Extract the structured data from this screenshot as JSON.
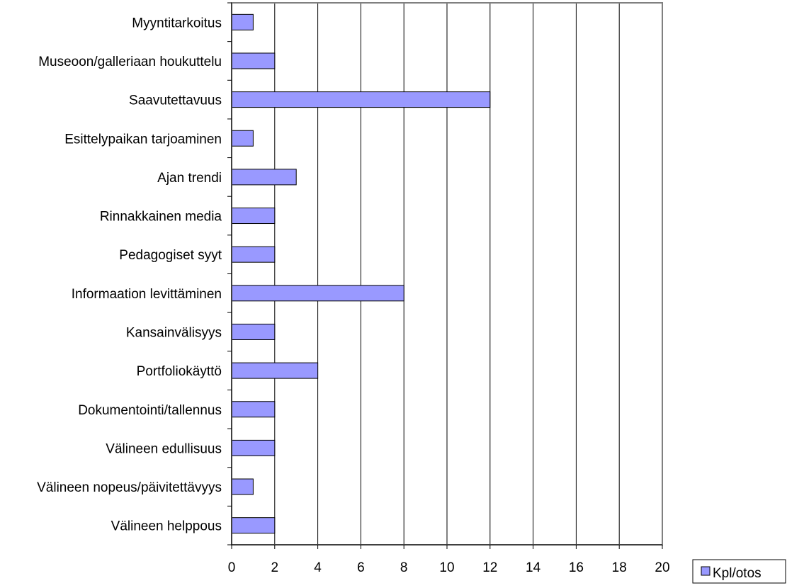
{
  "chart_data": {
    "type": "bar",
    "orientation": "horizontal",
    "title": "",
    "xlabel": "",
    "ylabel": "",
    "categories": [
      "Myyntitarkoitus",
      "Museoon/galleriaan houkuttelu",
      "Saavutettavuus",
      "Esittelypaikan tarjoaminen",
      "Ajan trendi",
      "Rinnakkainen media",
      "Pedagogiset syyt",
      "Informaation levittäminen",
      "Kansainvälisyys",
      "Portfoliokäyttö",
      "Dokumentointi/tallennus",
      "Välineen edullisuus",
      "Välineen nopeus/päivitettävyys",
      "Välineen helppous"
    ],
    "series": [
      {
        "name": "Kpl/otos",
        "values": [
          1,
          2,
          12,
          1,
          3,
          2,
          2,
          8,
          2,
          4,
          2,
          2,
          1,
          2
        ],
        "color": "#9999ff"
      }
    ],
    "xlim": [
      0,
      20
    ],
    "xticks": [
      "0",
      "2",
      "4",
      "6",
      "8",
      "10",
      "12",
      "14",
      "16",
      "18",
      "20"
    ],
    "grid": "vertical",
    "legend": "bottom-right"
  }
}
